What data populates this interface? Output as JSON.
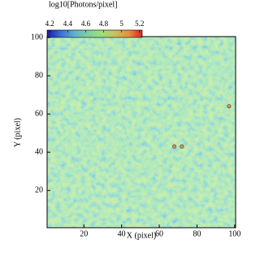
{
  "chart_data": {
    "type": "image",
    "colorbar_label": "log10[Photons/pixel]",
    "clim": [
      4.17,
      5.23
    ],
    "cticks": [
      4.2,
      4.4,
      4.6,
      4.8,
      5,
      5.2
    ],
    "colormap": [
      "#1a1aa8",
      "#3a6fd8",
      "#5fb0d0",
      "#7fd0a0",
      "#9ae07a",
      "#c8c060",
      "#e89040",
      "#e02020"
    ],
    "xlabel": "X (pixel)",
    "ylabel": "Y (pixel)",
    "xlim": [
      0.5,
      100.5
    ],
    "ylim": [
      0.5,
      100.5
    ],
    "xticks": [
      20,
      40,
      60,
      80,
      100
    ],
    "yticks": [
      20,
      40,
      60,
      80,
      100
    ],
    "sources": {
      "x": [
        68,
        72,
        97
      ],
      "y": [
        43,
        43,
        64
      ],
      "color": "#e89040"
    }
  }
}
